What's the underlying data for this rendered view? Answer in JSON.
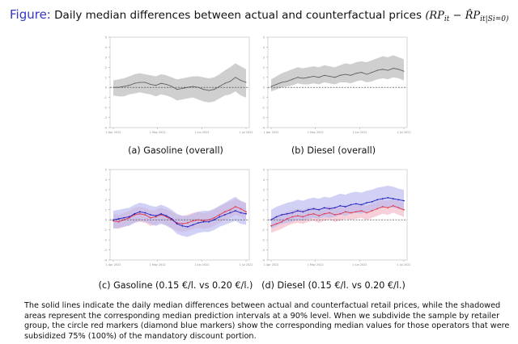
{
  "title": {
    "label": "Figure:",
    "text": "Daily median differences between actual and counterfactual prices",
    "formula_rp": "(RP",
    "formula_sub1": "it",
    "formula_mid": " − R̂P",
    "formula_sub2": "it|S",
    "formula_sub3": "i",
    "formula_end": "=0)"
  },
  "captions": [
    "(a) Gasoline (overall)",
    "(b) Diesel (overall)",
    "(c) Gasoline (0.15 €/l. vs 0.20 €/l.)",
    "(d) Diesel (0.15 €/l. vs 0.20 €/l.)"
  ],
  "note": "The solid lines indicate the daily median differences between actual and counterfactual retail prices, while the shadowed areas represent the corresponding median prediction intervals at a 90% level. When we subdivide the sample by retailer group, the circle red markers (diamond blue markers) show the corresponding median values for those operators that were subsidized 75% (100%) of the mandatory discount portion.",
  "colors": {
    "title_label": "#3535c8",
    "overall_line": "#555555",
    "band_gray": "#cfcfcf",
    "red_series": "#e03a50",
    "blue_series": "#2020c0",
    "red_band": "#f2b8c6",
    "blue_band": "#b8b8f0"
  },
  "chart_data": [
    {
      "type": "line",
      "title": "",
      "ylim": [
        -4,
        5
      ],
      "x_ticks": [
        "1 Apr 2022",
        "1 May 2022",
        "1 Jun 2022",
        "1 Jul 2022"
      ],
      "zero_line": "dashed",
      "series": [
        {
          "values": [
            0.0,
            0.0,
            0.1,
            0.2,
            0.4,
            0.5,
            0.5,
            0.3,
            0.2,
            0.4,
            0.3,
            0.1,
            -0.2,
            -0.1,
            0.0,
            0.1,
            0.0,
            -0.2,
            -0.3,
            -0.2,
            0.1,
            0.4,
            0.6,
            1.0,
            0.7,
            0.5
          ],
          "band_lower": [
            -0.8,
            -0.9,
            -0.9,
            -0.7,
            -0.6,
            -0.5,
            -0.6,
            -0.7,
            -0.9,
            -0.7,
            -0.8,
            -1.0,
            -1.3,
            -1.2,
            -1.1,
            -1.0,
            -1.2,
            -1.4,
            -1.5,
            -1.4,
            -1.1,
            -0.8,
            -0.7,
            -0.4,
            -0.8,
            -1.0
          ],
          "band_upper": [
            0.7,
            0.8,
            0.9,
            1.1,
            1.3,
            1.4,
            1.3,
            1.2,
            1.1,
            1.3,
            1.2,
            1.0,
            0.8,
            0.9,
            1.0,
            1.1,
            1.1,
            1.0,
            0.9,
            1.0,
            1.3,
            1.7,
            2.0,
            2.4,
            2.1,
            1.8
          ]
        }
      ]
    },
    {
      "type": "line",
      "title": "",
      "ylim": [
        -4,
        5
      ],
      "x_ticks": [
        "1 Apr 2022",
        "1 May 2022",
        "1 Jun 2022",
        "1 Jul 2022"
      ],
      "zero_line": "dashed",
      "series": [
        {
          "values": [
            0.1,
            0.3,
            0.5,
            0.6,
            0.8,
            1.0,
            0.9,
            1.0,
            1.1,
            1.0,
            1.2,
            1.1,
            1.0,
            1.2,
            1.3,
            1.2,
            1.4,
            1.5,
            1.3,
            1.5,
            1.7,
            1.8,
            1.7,
            1.9,
            1.8,
            1.6
          ],
          "band_lower": [
            -0.4,
            -0.2,
            0.0,
            0.1,
            0.2,
            0.4,
            0.3,
            0.3,
            0.4,
            0.3,
            0.5,
            0.4,
            0.3,
            0.5,
            0.5,
            0.4,
            0.6,
            0.7,
            0.5,
            0.6,
            0.8,
            0.9,
            0.8,
            1.0,
            0.9,
            0.7
          ],
          "band_upper": [
            0.8,
            1.1,
            1.4,
            1.6,
            1.8,
            2.0,
            1.9,
            2.0,
            2.1,
            2.0,
            2.2,
            2.1,
            2.0,
            2.2,
            2.4,
            2.3,
            2.5,
            2.6,
            2.5,
            2.7,
            2.9,
            3.1,
            3.0,
            3.2,
            3.0,
            2.8
          ]
        }
      ]
    },
    {
      "type": "line",
      "title": "",
      "ylim": [
        -4,
        5
      ],
      "x_ticks": [
        "1 Apr 2022",
        "1 May 2022",
        "1 Jun 2022",
        "1 Jul 2022"
      ],
      "zero_line": "dashed",
      "series": [
        {
          "values": [
            -0.1,
            -0.2,
            0.0,
            0.2,
            0.5,
            0.6,
            0.5,
            0.2,
            0.3,
            0.5,
            0.3,
            0.0,
            -0.3,
            -0.4,
            -0.3,
            -0.1,
            0.0,
            -0.1,
            0.0,
            0.2,
            0.5,
            0.8,
            1.0,
            1.3,
            1.1,
            0.8
          ],
          "band_lower": [
            -0.8,
            -0.9,
            -0.7,
            -0.5,
            -0.3,
            -0.2,
            -0.3,
            -0.6,
            -0.5,
            -0.3,
            -0.5,
            -0.8,
            -1.1,
            -1.2,
            -1.1,
            -0.9,
            -0.8,
            -0.9,
            -0.8,
            -0.6,
            -0.3,
            0.0,
            0.2,
            0.5,
            0.3,
            0.0
          ],
          "band_upper": [
            0.6,
            0.5,
            0.7,
            0.9,
            1.2,
            1.3,
            1.2,
            0.9,
            1.0,
            1.2,
            1.0,
            0.8,
            0.5,
            0.4,
            0.5,
            0.7,
            0.8,
            0.7,
            0.8,
            1.0,
            1.3,
            1.6,
            1.8,
            2.1,
            1.9,
            1.6
          ]
        },
        {
          "values": [
            0.0,
            0.1,
            0.2,
            0.3,
            0.6,
            0.8,
            0.7,
            0.5,
            0.4,
            0.6,
            0.4,
            0.1,
            -0.4,
            -0.6,
            -0.7,
            -0.5,
            -0.3,
            -0.2,
            -0.2,
            0.0,
            0.3,
            0.5,
            0.7,
            0.9,
            0.7,
            0.6
          ],
          "band_lower": [
            -0.9,
            -0.8,
            -0.7,
            -0.6,
            -0.3,
            -0.1,
            -0.2,
            -0.4,
            -0.6,
            -0.4,
            -0.6,
            -0.9,
            -1.4,
            -1.6,
            -1.7,
            -1.5,
            -1.3,
            -1.2,
            -1.2,
            -1.0,
            -0.7,
            -0.5,
            -0.3,
            -0.1,
            -0.4,
            -0.5
          ],
          "band_upper": [
            0.9,
            1.0,
            1.1,
            1.2,
            1.5,
            1.7,
            1.6,
            1.4,
            1.3,
            1.5,
            1.3,
            1.0,
            0.6,
            0.4,
            0.4,
            0.6,
            0.8,
            0.9,
            0.9,
            1.1,
            1.4,
            1.7,
            2.0,
            2.3,
            1.9,
            1.7
          ]
        }
      ]
    },
    {
      "type": "line",
      "title": "",
      "ylim": [
        -4,
        5
      ],
      "x_ticks": [
        "1 Apr 2022",
        "1 May 2022",
        "1 Jun 2022",
        "1 Jul 2022"
      ],
      "zero_line": "dashed",
      "series": [
        {
          "values": [
            -0.6,
            -0.4,
            -0.2,
            0.1,
            0.3,
            0.4,
            0.3,
            0.5,
            0.6,
            0.4,
            0.6,
            0.7,
            0.5,
            0.6,
            0.8,
            0.7,
            0.8,
            0.9,
            0.7,
            0.9,
            1.1,
            1.3,
            1.2,
            1.4,
            1.2,
            1.0
          ],
          "band_lower": [
            -1.3,
            -1.1,
            -0.9,
            -0.6,
            -0.4,
            -0.3,
            -0.4,
            -0.2,
            -0.1,
            -0.3,
            -0.1,
            0.0,
            -0.2,
            -0.1,
            0.1,
            0.0,
            0.1,
            0.2,
            0.0,
            0.2,
            0.4,
            0.6,
            0.5,
            0.7,
            0.5,
            0.3
          ],
          "band_upper": [
            0.2,
            0.4,
            0.6,
            0.8,
            1.0,
            1.1,
            1.0,
            1.2,
            1.3,
            1.1,
            1.3,
            1.4,
            1.2,
            1.3,
            1.5,
            1.4,
            1.5,
            1.6,
            1.4,
            1.6,
            1.8,
            2.0,
            1.9,
            2.1,
            1.9,
            1.7
          ]
        },
        {
          "values": [
            0.0,
            0.3,
            0.5,
            0.6,
            0.7,
            0.9,
            0.8,
            1.0,
            1.1,
            1.0,
            1.2,
            1.1,
            1.2,
            1.4,
            1.3,
            1.5,
            1.6,
            1.5,
            1.7,
            1.8,
            2.0,
            2.1,
            2.2,
            2.1,
            2.0,
            1.9
          ],
          "band_lower": [
            -0.9,
            -0.6,
            -0.4,
            -0.3,
            -0.2,
            0.0,
            -0.1,
            0.1,
            0.2,
            0.1,
            0.3,
            0.2,
            0.3,
            0.5,
            0.4,
            0.6,
            0.7,
            0.6,
            0.8,
            0.9,
            1.1,
            1.2,
            1.3,
            1.2,
            1.1,
            1.0
          ],
          "band_upper": [
            1.0,
            1.3,
            1.5,
            1.7,
            1.8,
            2.0,
            1.9,
            2.1,
            2.2,
            2.1,
            2.3,
            2.2,
            2.4,
            2.6,
            2.5,
            2.7,
            2.8,
            2.7,
            2.9,
            3.0,
            3.2,
            3.3,
            3.4,
            3.3,
            3.1,
            3.0
          ]
        }
      ]
    }
  ]
}
